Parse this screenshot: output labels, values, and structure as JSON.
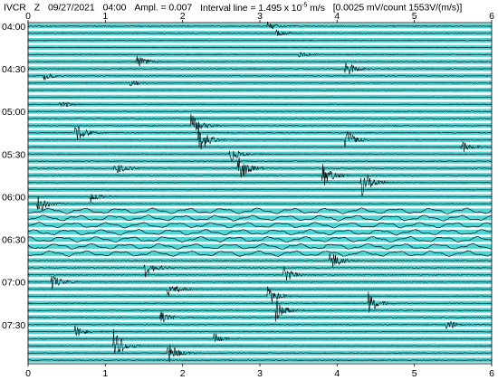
{
  "header": {
    "station": "IVCR",
    "component": "Z",
    "date": "09/27/2021",
    "start_time": "04:00",
    "amplitude": "Ampl. = 0.007",
    "interval_prefix": "Interval line = 1.495 x 10",
    "interval_exponent": "-5",
    "interval_suffix": " m/s",
    "calibration": "[0.0025 mV/count  1553V/(m/s)]"
  },
  "colors": {
    "trace": "#000000",
    "band": "#33cccc",
    "background": "#ffffff"
  },
  "chart_data": {
    "type": "line",
    "title": "IVCR  Z  09/27/2021  04:00",
    "x_axis_label": "",
    "x_ticks": [
      "0",
      "1",
      "2",
      "3",
      "4",
      "5",
      "6"
    ],
    "xlim": [
      0,
      6
    ],
    "y_ticks": [
      "04:00",
      "04:30",
      "05:00",
      "05:30",
      "06:00",
      "06:30",
      "07:00",
      "07:30"
    ],
    "trace_count": 48,
    "noise_period_traces": [
      26,
      27,
      28,
      29,
      30,
      31,
      32
    ],
    "events": [
      {
        "trace": 0,
        "x": 3.1,
        "amp": 0.9
      },
      {
        "trace": 1,
        "x": 3.2,
        "amp": 0.6
      },
      {
        "trace": 4,
        "x": 3.5,
        "amp": 0.5
      },
      {
        "trace": 5,
        "x": 1.4,
        "amp": 1.2
      },
      {
        "trace": 6,
        "x": 4.1,
        "amp": 1.6
      },
      {
        "trace": 7,
        "x": 0.2,
        "amp": 0.7
      },
      {
        "trace": 8,
        "x": 1.3,
        "amp": 0.6
      },
      {
        "trace": 11,
        "x": 0.4,
        "amp": 0.7
      },
      {
        "trace": 14,
        "x": 2.1,
        "amp": 2.2
      },
      {
        "trace": 15,
        "x": 0.6,
        "amp": 1.6
      },
      {
        "trace": 16,
        "x": 2.2,
        "amp": 2.5
      },
      {
        "trace": 16,
        "x": 4.1,
        "amp": 1.8
      },
      {
        "trace": 17,
        "x": 5.6,
        "amp": 1.0
      },
      {
        "trace": 18,
        "x": 2.6,
        "amp": 1.4
      },
      {
        "trace": 20,
        "x": 1.1,
        "amp": 1.5
      },
      {
        "trace": 20,
        "x": 2.7,
        "amp": 2.8
      },
      {
        "trace": 21,
        "x": 3.8,
        "amp": 2.2
      },
      {
        "trace": 22,
        "x": 4.3,
        "amp": 2.4
      },
      {
        "trace": 24,
        "x": 0.8,
        "amp": 1.0
      },
      {
        "trace": 25,
        "x": 0.1,
        "amp": 1.8
      },
      {
        "trace": 33,
        "x": 3.9,
        "amp": 1.6
      },
      {
        "trace": 34,
        "x": 1.5,
        "amp": 2.0
      },
      {
        "trace": 35,
        "x": 3.3,
        "amp": 1.4
      },
      {
        "trace": 36,
        "x": 0.3,
        "amp": 1.2
      },
      {
        "trace": 37,
        "x": 1.8,
        "amp": 1.4
      },
      {
        "trace": 38,
        "x": 3.1,
        "amp": 1.6
      },
      {
        "trace": 39,
        "x": 4.4,
        "amp": 1.8
      },
      {
        "trace": 40,
        "x": 3.2,
        "amp": 1.8
      },
      {
        "trace": 41,
        "x": 1.7,
        "amp": 1.2
      },
      {
        "trace": 42,
        "x": 5.4,
        "amp": 1.0
      },
      {
        "trace": 43,
        "x": 0.6,
        "amp": 1.0
      },
      {
        "trace": 44,
        "x": 2.4,
        "amp": 1.0
      },
      {
        "trace": 45,
        "x": 1.1,
        "amp": 2.6
      },
      {
        "trace": 46,
        "x": 1.8,
        "amp": 2.0
      }
    ]
  }
}
